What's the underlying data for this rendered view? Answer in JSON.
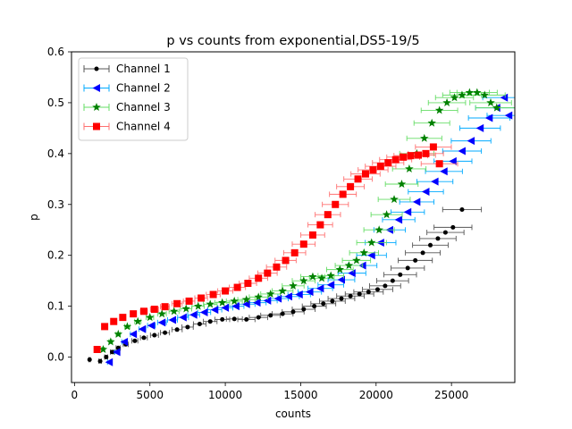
{
  "chart_data": {
    "type": "scatter",
    "title": "p vs counts from exponential,DS5-19/5",
    "xlabel": "counts",
    "ylabel": "p",
    "xlim": [
      -200,
      29200
    ],
    "ylim": [
      -0.05,
      0.6
    ],
    "xticks": [
      0,
      5000,
      10000,
      15000,
      20000,
      25000
    ],
    "xtick_labels": [
      "0",
      "5000",
      "10000",
      "15000",
      "20000",
      "25000"
    ],
    "yticks": [
      0.0,
      0.1,
      0.2,
      0.3,
      0.4,
      0.5,
      0.6
    ],
    "ytick_labels": [
      "0.0",
      "0.1",
      "0.2",
      "0.3",
      "0.4",
      "0.5",
      "0.6"
    ],
    "grid": false,
    "legend_position": "upper-left",
    "xerr_fraction": 0.05,
    "series": [
      {
        "name": "Channel 1",
        "color": "#000000",
        "err_color": "#555555",
        "marker": "circle",
        "points": [
          [
            1000,
            -0.005
          ],
          [
            1700,
            -0.008
          ],
          [
            2100,
            0.0
          ],
          [
            2500,
            0.01
          ],
          [
            2900,
            0.018
          ],
          [
            3400,
            0.025
          ],
          [
            4000,
            0.032
          ],
          [
            4600,
            0.038
          ],
          [
            5300,
            0.043
          ],
          [
            6000,
            0.048
          ],
          [
            6800,
            0.054
          ],
          [
            7500,
            0.059
          ],
          [
            8300,
            0.065
          ],
          [
            9000,
            0.07
          ],
          [
            9800,
            0.074
          ],
          [
            10600,
            0.075
          ],
          [
            11400,
            0.074
          ],
          [
            12200,
            0.078
          ],
          [
            13000,
            0.082
          ],
          [
            13800,
            0.085
          ],
          [
            14500,
            0.089
          ],
          [
            15200,
            0.094
          ],
          [
            15900,
            0.1
          ],
          [
            16500,
            0.105
          ],
          [
            17100,
            0.11
          ],
          [
            17700,
            0.115
          ],
          [
            18300,
            0.12
          ],
          [
            18900,
            0.124
          ],
          [
            19500,
            0.128
          ],
          [
            20100,
            0.133
          ],
          [
            20600,
            0.14
          ],
          [
            21100,
            0.15
          ],
          [
            21600,
            0.162
          ],
          [
            22100,
            0.175
          ],
          [
            22600,
            0.19
          ],
          [
            23100,
            0.205
          ],
          [
            23600,
            0.22
          ],
          [
            24100,
            0.233
          ],
          [
            24600,
            0.245
          ],
          [
            25100,
            0.255
          ],
          [
            25700,
            0.29
          ]
        ]
      },
      {
        "name": "Channel 2",
        "color": "#0000ff",
        "err_color": "#00aaff",
        "marker": "triangle-left",
        "points": [
          [
            2300,
            -0.01
          ],
          [
            2800,
            0.01
          ],
          [
            3300,
            0.03
          ],
          [
            3900,
            0.045
          ],
          [
            4500,
            0.055
          ],
          [
            5100,
            0.062
          ],
          [
            5800,
            0.068
          ],
          [
            6500,
            0.073
          ],
          [
            7200,
            0.078
          ],
          [
            7900,
            0.083
          ],
          [
            8600,
            0.088
          ],
          [
            9300,
            0.093
          ],
          [
            10000,
            0.097
          ],
          [
            10700,
            0.1
          ],
          [
            11400,
            0.104
          ],
          [
            12100,
            0.107
          ],
          [
            12800,
            0.111
          ],
          [
            13500,
            0.115
          ],
          [
            14200,
            0.119
          ],
          [
            14900,
            0.123
          ],
          [
            15600,
            0.128
          ],
          [
            16300,
            0.135
          ],
          [
            17000,
            0.142
          ],
          [
            17700,
            0.152
          ],
          [
            18400,
            0.165
          ],
          [
            19100,
            0.18
          ],
          [
            19700,
            0.2
          ],
          [
            20300,
            0.225
          ],
          [
            20900,
            0.25
          ],
          [
            21500,
            0.27
          ],
          [
            22100,
            0.285
          ],
          [
            22700,
            0.305
          ],
          [
            23300,
            0.325
          ],
          [
            23900,
            0.345
          ],
          [
            24500,
            0.365
          ],
          [
            25100,
            0.385
          ],
          [
            25700,
            0.405
          ],
          [
            26300,
            0.425
          ],
          [
            26900,
            0.45
          ],
          [
            27500,
            0.47
          ],
          [
            28000,
            0.49
          ],
          [
            28500,
            0.51
          ],
          [
            28800,
            0.475
          ]
        ]
      },
      {
        "name": "Channel 3",
        "color": "#008000",
        "err_color": "#66dd66",
        "marker": "star",
        "points": [
          [
            1900,
            0.015
          ],
          [
            2400,
            0.03
          ],
          [
            2900,
            0.045
          ],
          [
            3500,
            0.06
          ],
          [
            4200,
            0.07
          ],
          [
            5000,
            0.078
          ],
          [
            5800,
            0.085
          ],
          [
            6600,
            0.09
          ],
          [
            7400,
            0.095
          ],
          [
            8200,
            0.1
          ],
          [
            9000,
            0.104
          ],
          [
            9800,
            0.107
          ],
          [
            10600,
            0.11
          ],
          [
            11400,
            0.113
          ],
          [
            12200,
            0.118
          ],
          [
            13000,
            0.124
          ],
          [
            13800,
            0.13
          ],
          [
            14500,
            0.14
          ],
          [
            15200,
            0.15
          ],
          [
            15800,
            0.158
          ],
          [
            16400,
            0.155
          ],
          [
            17000,
            0.16
          ],
          [
            17600,
            0.172
          ],
          [
            18200,
            0.18
          ],
          [
            18700,
            0.19
          ],
          [
            19200,
            0.205
          ],
          [
            19700,
            0.225
          ],
          [
            20200,
            0.25
          ],
          [
            20700,
            0.28
          ],
          [
            21200,
            0.31
          ],
          [
            21700,
            0.34
          ],
          [
            22200,
            0.37
          ],
          [
            22700,
            0.4
          ],
          [
            23200,
            0.43
          ],
          [
            23700,
            0.46
          ],
          [
            24200,
            0.485
          ],
          [
            24700,
            0.5
          ],
          [
            25200,
            0.51
          ],
          [
            25700,
            0.515
          ],
          [
            26200,
            0.52
          ],
          [
            26700,
            0.52
          ],
          [
            27200,
            0.515
          ],
          [
            27600,
            0.5
          ],
          [
            28000,
            0.49
          ]
        ]
      },
      {
        "name": "Channel 4",
        "color": "#ff0000",
        "err_color": "#ff7070",
        "marker": "square",
        "points": [
          [
            1500,
            0.015
          ],
          [
            2000,
            0.06
          ],
          [
            2600,
            0.07
          ],
          [
            3200,
            0.078
          ],
          [
            3900,
            0.085
          ],
          [
            4600,
            0.09
          ],
          [
            5300,
            0.094
          ],
          [
            6000,
            0.099
          ],
          [
            6800,
            0.105
          ],
          [
            7600,
            0.11
          ],
          [
            8400,
            0.116
          ],
          [
            9200,
            0.123
          ],
          [
            10000,
            0.13
          ],
          [
            10800,
            0.137
          ],
          [
            11500,
            0.145
          ],
          [
            12200,
            0.155
          ],
          [
            12800,
            0.165
          ],
          [
            13400,
            0.177
          ],
          [
            14000,
            0.19
          ],
          [
            14600,
            0.205
          ],
          [
            15200,
            0.222
          ],
          [
            15800,
            0.24
          ],
          [
            16300,
            0.26
          ],
          [
            16800,
            0.28
          ],
          [
            17300,
            0.3
          ],
          [
            17800,
            0.32
          ],
          [
            18300,
            0.335
          ],
          [
            18800,
            0.35
          ],
          [
            19300,
            0.36
          ],
          [
            19800,
            0.368
          ],
          [
            20300,
            0.375
          ],
          [
            20800,
            0.382
          ],
          [
            21300,
            0.388
          ],
          [
            21800,
            0.393
          ],
          [
            22300,
            0.396
          ],
          [
            22800,
            0.397
          ],
          [
            23300,
            0.4
          ],
          [
            23800,
            0.413
          ],
          [
            24200,
            0.38
          ]
        ]
      }
    ]
  }
}
